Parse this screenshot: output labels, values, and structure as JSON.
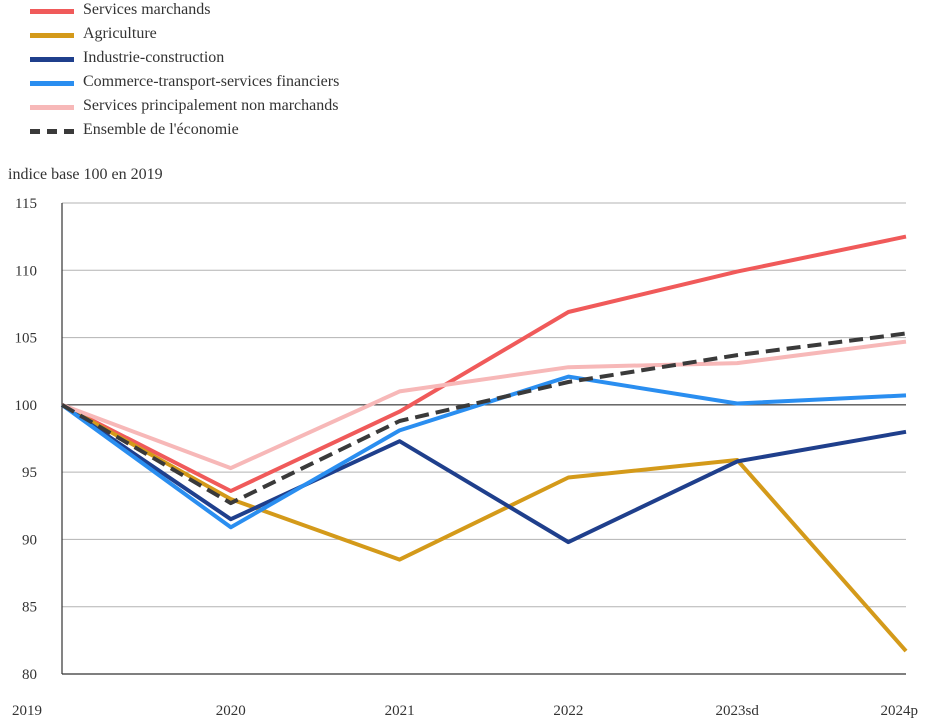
{
  "chart_data": {
    "type": "line",
    "title": "",
    "xlabel": "",
    "ylabel": "indice base 100 en 2019",
    "categories": [
      "2019",
      "2020",
      "2021",
      "2022",
      "2023sd",
      "2024p"
    ],
    "ylim": [
      80,
      115
    ],
    "yticks": [
      "115",
      "110",
      "105",
      "100",
      "95",
      "90",
      "85",
      "80"
    ],
    "ytick_values": [
      115,
      110,
      105,
      100,
      95,
      90,
      85,
      80
    ],
    "grid": true,
    "legend_position": "top-left",
    "series": [
      {
        "name": "Services marchands",
        "color": "#f05a5a",
        "dashed": false,
        "values": [
          100,
          93.6,
          99.5,
          106.9,
          109.9,
          112.5
        ]
      },
      {
        "name": "Agriculture",
        "color": "#d49a1a",
        "dashed": false,
        "values": [
          100,
          93.0,
          88.5,
          94.6,
          95.9,
          81.7
        ]
      },
      {
        "name": "Industrie-construction",
        "color": "#1f3f8c",
        "dashed": false,
        "values": [
          100,
          91.5,
          97.3,
          89.8,
          95.8,
          98.0
        ]
      },
      {
        "name": "Commerce-transport-services financiers",
        "color": "#2a8ef0",
        "dashed": false,
        "values": [
          100,
          90.9,
          98.1,
          102.1,
          100.1,
          100.7
        ]
      },
      {
        "name": "Services principalement non marchands",
        "color": "#f7b8b8",
        "dashed": false,
        "values": [
          100,
          95.3,
          101.0,
          102.8,
          103.1,
          104.7
        ]
      },
      {
        "name": "Ensemble de l'économie",
        "color": "#3a3a3a",
        "dashed": true,
        "values": [
          100,
          92.7,
          98.8,
          101.7,
          103.7,
          105.3
        ]
      }
    ]
  }
}
